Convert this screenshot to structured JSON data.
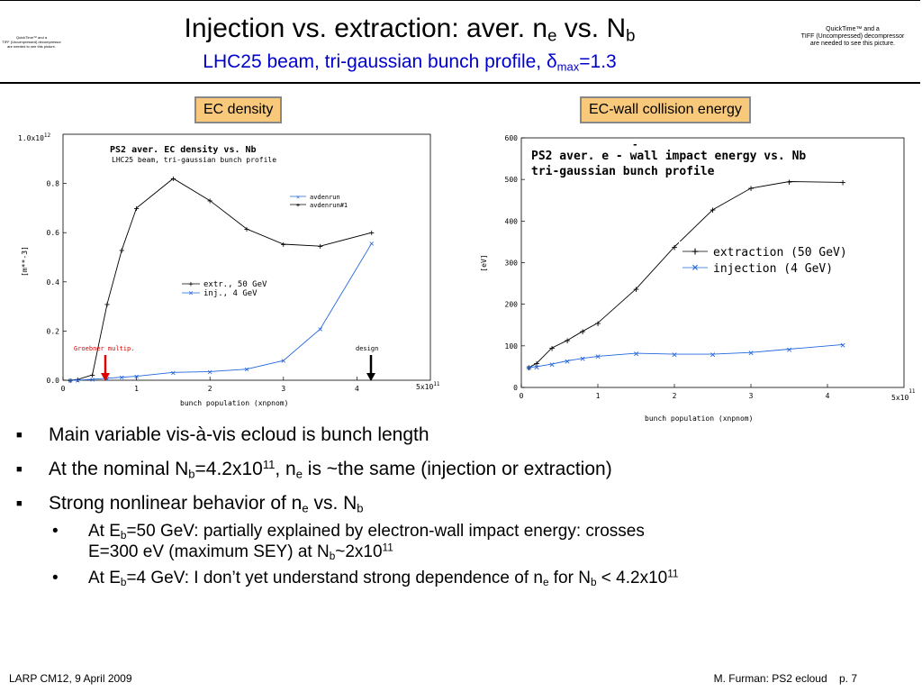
{
  "header": {
    "title": {
      "main": "Injection vs. extraction: aver. n",
      "sub1": "e",
      "mid": " vs. N",
      "sub2": "b"
    },
    "subtitle": {
      "main": "LHC25 beam, tri-gaussian bunch profile, ",
      "delta": "δ",
      "sub": "max",
      "end": "=1.3"
    },
    "qt_left": [
      "QuickTime™ and a",
      "TIFF (Uncompressed) decompressor",
      "are needed to see this picture."
    ],
    "qt_right": [
      "QuickTime™ and a",
      "TIFF (Uncompressed) decompressor",
      "are needed to see this picture."
    ]
  },
  "labels": {
    "density": "EC density",
    "energy": "EC-wall collision energy"
  },
  "chart_data": [
    {
      "type": "line",
      "title": "PS2 aver. EC density vs. Nb",
      "subtitle": "LHC25 beam, tri-gaussian bunch profile",
      "xlabel": "bunch population (xnpnom)",
      "ylabel": "[m**-3]",
      "x_exp_label": "5x10",
      "x_exp": "11",
      "y_exp_label": "1.0x10",
      "y_exp": "12",
      "xlim": [
        0,
        5
      ],
      "ylim": [
        0,
        1.0
      ],
      "x_ticks": [
        "0",
        "1",
        "2",
        "3",
        "4"
      ],
      "y_ticks": [
        "0.0",
        "0.2",
        "0.4",
        "0.6",
        "0.8"
      ],
      "legend_top": [
        "avdenrun",
        "avdenrun#1"
      ],
      "series": [
        {
          "name": "extr., 50 GeV",
          "color": "#000000",
          "marker": "plus",
          "x": [
            0.1,
            0.2,
            0.4,
            0.6,
            0.8,
            1.0,
            1.5,
            2.0,
            2.5,
            3.0,
            3.5,
            4.2
          ],
          "y": [
            0.0,
            0.003,
            0.022,
            0.31,
            0.53,
            0.7,
            0.82,
            0.73,
            0.615,
            0.553,
            0.545,
            0.6
          ]
        },
        {
          "name": "inj., 4 GeV",
          "color": "#2266dd",
          "marker": "x",
          "x": [
            0.1,
            0.2,
            0.4,
            0.6,
            0.8,
            1.0,
            1.5,
            2.0,
            2.5,
            3.0,
            3.5,
            4.2
          ],
          "y": [
            0.0,
            0.0,
            0.004,
            0.008,
            0.012,
            0.016,
            0.032,
            0.035,
            0.045,
            0.08,
            0.208,
            0.556
          ]
        }
      ],
      "annotations": [
        {
          "text": "Groebner multip.",
          "x": 0.58,
          "color": "#dd0000"
        },
        {
          "text": "design",
          "x": 4.2,
          "color": "#000000"
        }
      ]
    },
    {
      "type": "line",
      "title_line1": "PS2 aver. e - wall impact energy vs. Nb",
      "title_bar": "-",
      "title_line2": "tri-gaussian bunch profile",
      "xlabel": "bunch population (xnpnom)",
      "ylabel": "[eV]",
      "x_exp_label": "5x10",
      "x_exp": "11",
      "xlim": [
        0,
        5
      ],
      "ylim": [
        0,
        600
      ],
      "x_ticks": [
        "0",
        "1",
        "2",
        "3",
        "4"
      ],
      "y_ticks": [
        "0",
        "100",
        "200",
        "300",
        "400",
        "500",
        "600"
      ],
      "series": [
        {
          "name": "extraction (50 GeV)",
          "color": "#000000",
          "marker": "plus",
          "x": [
            0.1,
            0.2,
            0.4,
            0.6,
            0.8,
            1.0,
            1.5,
            2.0,
            2.5,
            3.0,
            3.5,
            4.2
          ],
          "y": [
            48,
            58,
            95,
            113,
            135,
            155,
            237,
            338,
            427,
            479,
            495,
            493
          ]
        },
        {
          "name": "injection (4 GeV)",
          "color": "#2266dd",
          "marker": "x",
          "x": [
            0.1,
            0.2,
            0.4,
            0.6,
            0.8,
            1.0,
            1.5,
            2.0,
            2.5,
            3.0,
            3.5,
            4.2
          ],
          "y": [
            48,
            50,
            56,
            64,
            70,
            75,
            82,
            80,
            80,
            84,
            92,
            103
          ]
        }
      ]
    }
  ],
  "bullets": {
    "b1": "Main variable vis-à-vis ecloud is bunch length",
    "b2": {
      "a": "At the nominal N",
      "s1": "b",
      "b": "=4.2x10",
      "p1": "11",
      "c": ", n",
      "s2": "e",
      "d": " is ~the same (injection or extraction)"
    },
    "b3": {
      "a": "Strong nonlinear behavior of n",
      "s1": "e",
      "b": " vs. N",
      "s2": "b"
    },
    "b4": {
      "a": "At E",
      "s1": "b",
      "b": "=50 GeV: partially explained by electron-wall impact energy: crosses",
      "c": "E=300 eV (maximum SEY) at N",
      "s2": "b",
      "d": "~2x10",
      "p1": "11"
    },
    "b5": {
      "a": "At E",
      "s1": "b",
      "b": "=4 GeV: I don’t yet understand strong dependence of n",
      "s2": "e",
      "c": " for N",
      "s3": "b",
      "d": " < 4.2x10",
      "p1": "11"
    }
  },
  "footer": {
    "left": "LARP CM12, 9 April 2009",
    "right": "M. Furman: PS2 ecloud    p. 7"
  }
}
